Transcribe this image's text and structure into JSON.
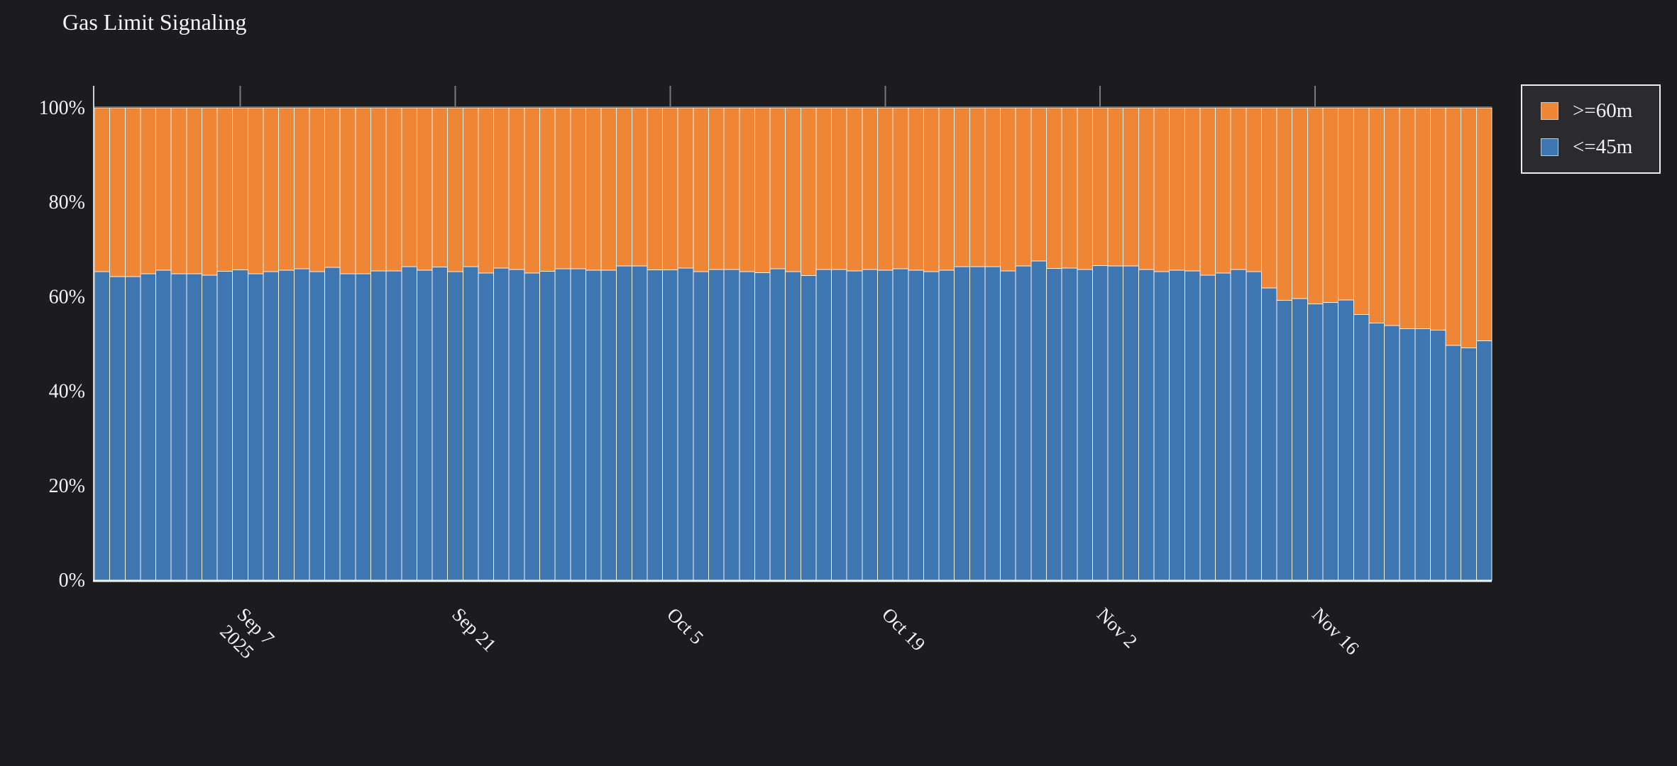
{
  "title": "Gas Limit Signaling",
  "colors": {
    "background": "#1c1c1e",
    "bar_gap": "#f5f2ee",
    "axis_bottom": "#f5f5f5",
    "axis_left": "#cfcfcf",
    "spine_top": "#6f6f6f",
    "date_tick": "#7a7a7a",
    "text": "#f2f2f2",
    "legend_background": "#2b2b2d",
    "legend_border": "#efefef"
  },
  "legend": {
    "items": [
      {
        "label": ">=60m",
        "color": "#ee8635"
      },
      {
        "label": "<=45m",
        "color": "#3e76b1"
      }
    ]
  },
  "chart_data": {
    "type": "bar",
    "stacked": true,
    "normalized": "percent",
    "title": "Gas Limit Signaling",
    "xlabel": "",
    "ylabel": "",
    "ylim": [
      0,
      100
    ],
    "grid": false,
    "legend_position": "top-right",
    "x": [
      "Aug 29",
      "Aug 30",
      "Aug 31",
      "Sep 1",
      "Sep 2",
      "Sep 3",
      "Sep 4",
      "Sep 5",
      "Sep 6",
      "Sep 7",
      "Sep 8",
      "Sep 9",
      "Sep 10",
      "Sep 11",
      "Sep 12",
      "Sep 13",
      "Sep 14",
      "Sep 15",
      "Sep 16",
      "Sep 17",
      "Sep 18",
      "Sep 19",
      "Sep 20",
      "Sep 21",
      "Sep 22",
      "Sep 23",
      "Sep 24",
      "Sep 25",
      "Sep 26",
      "Sep 27",
      "Sep 28",
      "Sep 29",
      "Sep 30",
      "Oct 1",
      "Oct 2",
      "Oct 3",
      "Oct 4",
      "Oct 5",
      "Oct 6",
      "Oct 7",
      "Oct 8",
      "Oct 9",
      "Oct 10",
      "Oct 11",
      "Oct 12",
      "Oct 13",
      "Oct 14",
      "Oct 15",
      "Oct 16",
      "Oct 17",
      "Oct 18",
      "Oct 19",
      "Oct 20",
      "Oct 21",
      "Oct 22",
      "Oct 23",
      "Oct 24",
      "Oct 25",
      "Oct 26",
      "Oct 27",
      "Oct 28",
      "Oct 29",
      "Oct 30",
      "Oct 31",
      "Nov 1",
      "Nov 2",
      "Nov 3",
      "Nov 4",
      "Nov 5",
      "Nov 6",
      "Nov 7",
      "Nov 8",
      "Nov 9",
      "Nov 10",
      "Nov 11",
      "Nov 12",
      "Nov 13",
      "Nov 14",
      "Nov 15",
      "Nov 16",
      "Nov 17",
      "Nov 18",
      "Nov 19",
      "Nov 20",
      "Nov 21",
      "Nov 22",
      "Nov 23",
      "Nov 24",
      "Nov 25",
      "Nov 26",
      "Nov 27"
    ],
    "series": [
      {
        "name": ">=60m",
        "color": "#ee8635",
        "stack_position": "top",
        "values": [
          34.7,
          35.7,
          35.7,
          35.1,
          34.4,
          35.1,
          35.1,
          35.4,
          34.6,
          34.3,
          35.1,
          34.7,
          34.4,
          34.1,
          34.7,
          33.8,
          35.1,
          35.1,
          34.5,
          34.5,
          33.6,
          34.4,
          33.7,
          34.7,
          33.6,
          35.0,
          33.9,
          34.2,
          35.0,
          34.6,
          34.1,
          34.1,
          34.4,
          34.4,
          33.5,
          33.5,
          34.3,
          34.3,
          33.9,
          34.7,
          34.2,
          34.2,
          34.7,
          34.9,
          34.1,
          34.7,
          35.5,
          34.2,
          34.2,
          34.5,
          34.2,
          34.4,
          34.1,
          34.4,
          34.7,
          34.4,
          33.6,
          33.6,
          33.6,
          34.5,
          33.5,
          32.4,
          34.0,
          33.9,
          34.2,
          33.4,
          33.5,
          33.5,
          34.2,
          34.7,
          34.4,
          34.5,
          35.4,
          35.0,
          34.2,
          34.7,
          38.1,
          40.8,
          40.4,
          41.5,
          41.2,
          40.7,
          43.8,
          45.6,
          46.1,
          46.8,
          46.8,
          47.1,
          50.3,
          50.8,
          49.3
        ]
      },
      {
        "name": "<=45m",
        "color": "#3e76b1",
        "stack_position": "bottom",
        "values": [
          65.3,
          64.3,
          64.3,
          64.9,
          65.6,
          64.9,
          64.9,
          64.6,
          65.4,
          65.7,
          64.9,
          65.3,
          65.6,
          65.9,
          65.3,
          66.2,
          64.9,
          64.9,
          65.5,
          65.5,
          66.4,
          65.6,
          66.3,
          65.3,
          66.4,
          65.0,
          66.1,
          65.8,
          65.0,
          65.4,
          65.9,
          65.9,
          65.6,
          65.6,
          66.5,
          66.5,
          65.7,
          65.7,
          66.1,
          65.3,
          65.8,
          65.8,
          65.3,
          65.1,
          65.9,
          65.3,
          64.5,
          65.8,
          65.8,
          65.5,
          65.8,
          65.6,
          65.9,
          65.6,
          65.3,
          65.6,
          66.4,
          66.4,
          66.4,
          65.5,
          66.5,
          67.6,
          66.0,
          66.1,
          65.8,
          66.6,
          66.5,
          66.5,
          65.8,
          65.3,
          65.6,
          65.5,
          64.6,
          65.0,
          65.8,
          65.3,
          61.9,
          59.2,
          59.6,
          58.5,
          58.8,
          59.3,
          56.2,
          54.4,
          53.9,
          53.2,
          53.2,
          52.9,
          49.7,
          49.2,
          50.7
        ]
      }
    ],
    "y_ticks": [
      {
        "label": "0%",
        "value": 0
      },
      {
        "label": "20%",
        "value": 20
      },
      {
        "label": "40%",
        "value": 40
      },
      {
        "label": "60%",
        "value": 60
      },
      {
        "label": "80%",
        "value": 80
      },
      {
        "label": "100%",
        "value": 100
      }
    ],
    "x_ticks": [
      {
        "label": "Sep 7",
        "sublabel": "2025",
        "index": 9
      },
      {
        "label": "Sep 21",
        "sublabel": "",
        "index": 23
      },
      {
        "label": "Oct 5",
        "sublabel": "",
        "index": 37
      },
      {
        "label": "Oct 19",
        "sublabel": "",
        "index": 51
      },
      {
        "label": "Nov 2",
        "sublabel": "",
        "index": 65
      },
      {
        "label": "Nov 16",
        "sublabel": "",
        "index": 79
      }
    ]
  }
}
